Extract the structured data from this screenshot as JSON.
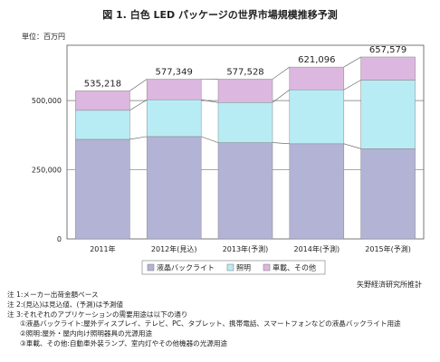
{
  "chart_data": {
    "type": "bar",
    "stacked": true,
    "title": "図 1. 白色 LED パッケージの世界市場規模推移予測",
    "unit_label": "単位：百万円",
    "categories": [
      "2011年",
      "2012年(見込)",
      "2013年(予測)",
      "2014年(予測)",
      "2015年(予測)"
    ],
    "series": [
      {
        "name": "液晶バックライト",
        "color": "#b3b3d6",
        "values": [
          360000,
          370000,
          348000,
          344000,
          326000
        ]
      },
      {
        "name": "照明",
        "color": "#b8ecf5",
        "values": [
          105000,
          133000,
          145000,
          195000,
          248000
        ]
      },
      {
        "name": "車載、その他",
        "color": "#dcb7df",
        "values": [
          70218,
          74349,
          84528,
          82096,
          83579
        ]
      }
    ],
    "totals": [
      "535,218",
      "577,349",
      "577,528",
      "621,096",
      "657,579"
    ],
    "ylim": [
      0,
      700000
    ],
    "yticks": [
      0,
      250000,
      500000
    ],
    "ytick_labels": [
      "0",
      "250,000",
      "500,000"
    ],
    "grid": true,
    "legend": "bottom",
    "source": "矢野経済研究所推計"
  },
  "notes": [
    "注 1:メーカー出荷金額ベース",
    "注 2:(見込)は見込値、(予測)は予測値",
    "注 3:それぞれのアプリケーションの需要用途は以下の通り",
    "①液晶バックライト:屋外ディスプレイ、テレビ、PC、タブレット、携帯電話、スマートフォンなどの液晶バックライト用途",
    "②照明:屋外・屋内向け照明器具の光源用途",
    "③車載、その他:自動車外装ランプ、室内灯やその他機器の光源用途"
  ]
}
